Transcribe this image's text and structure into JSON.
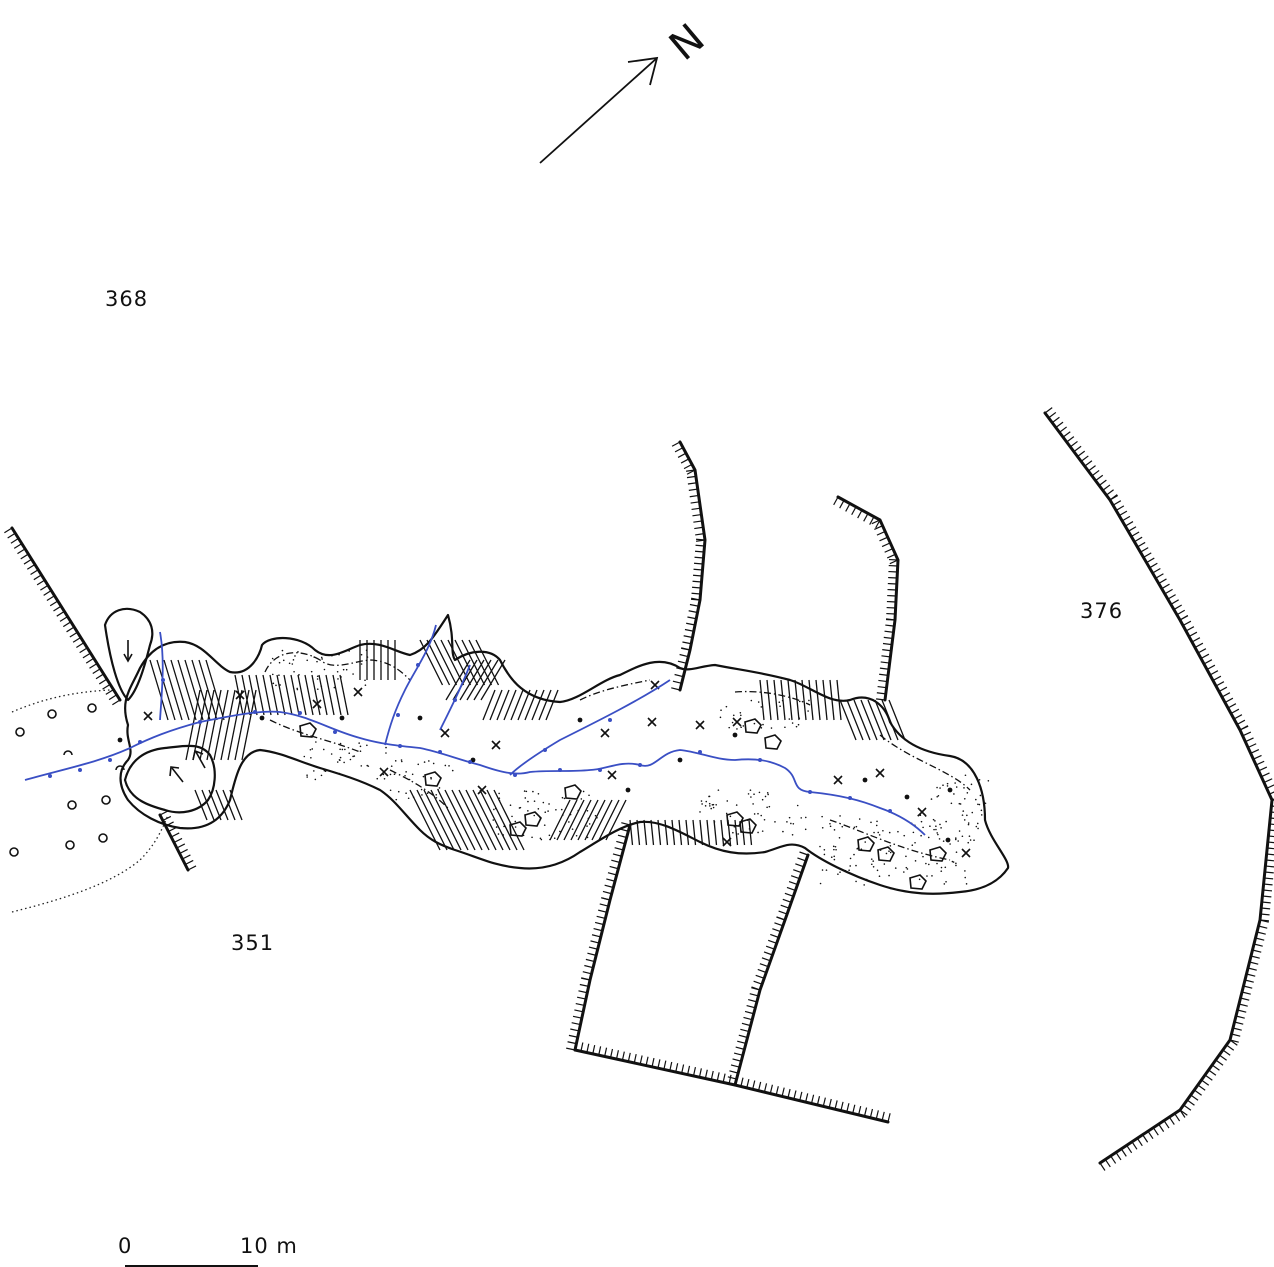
{
  "map": {
    "north_label": "N",
    "elevations": {
      "upper_left": "368",
      "lower_left": "351",
      "right": "376"
    },
    "scale": {
      "start_label": "0",
      "end_label": "10 m",
      "meters": 10
    },
    "colors": {
      "ink": "#111111",
      "stream": "#3a4fc4",
      "background": "#ffffff"
    },
    "icons": [
      "north-arrow-icon",
      "flow-arrow-icon",
      "boulder-icon"
    ]
  }
}
